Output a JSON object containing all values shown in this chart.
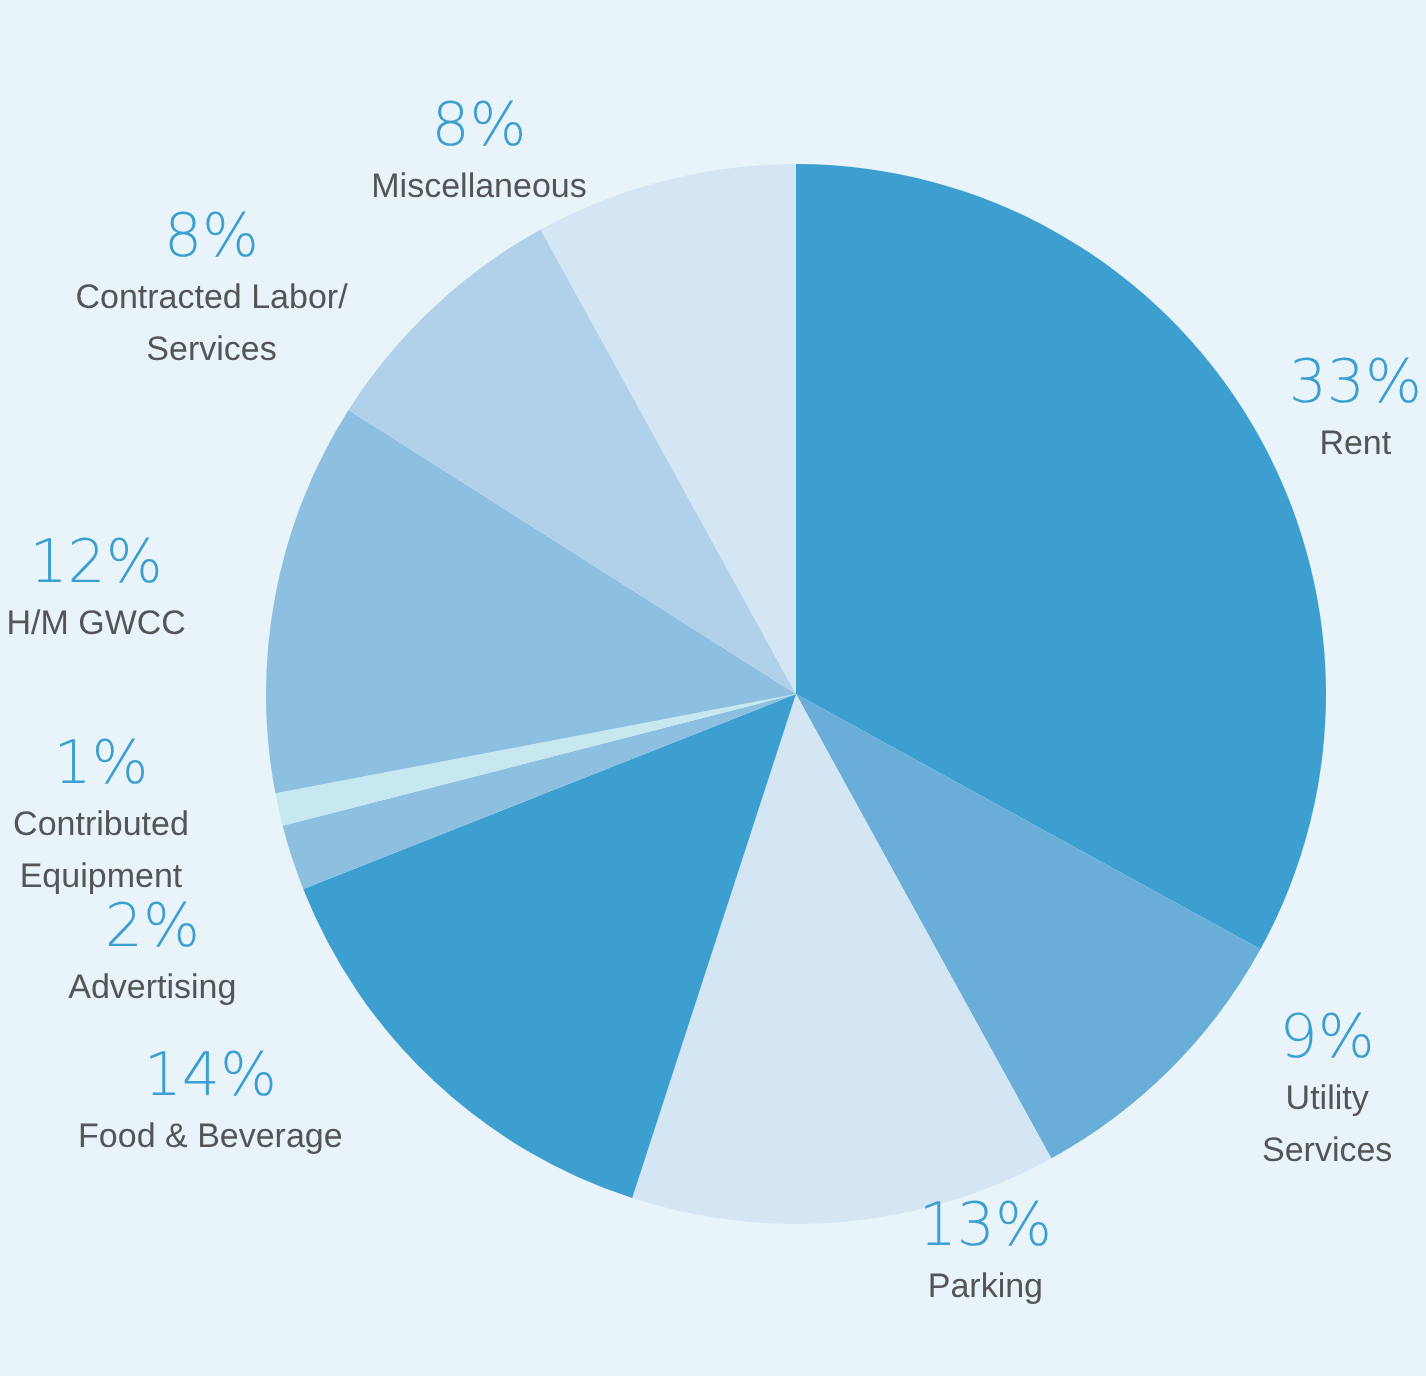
{
  "chart_data": {
    "type": "pie",
    "categories": [
      "Rent",
      "Utility\nServices",
      "Parking",
      "Food & Beverage",
      "Advertising",
      "Contributed\nEquipment",
      "H/M GWCC",
      "Contracted Labor/\nServices",
      "Miscellaneous"
    ],
    "values": [
      33,
      9,
      13,
      14,
      2,
      1,
      12,
      8,
      8
    ],
    "value_labels": [
      "33%",
      "9%",
      "13%",
      "14%",
      "2%",
      "1%",
      "12%",
      "8%",
      "8%"
    ],
    "colors": [
      "#3d9fd0",
      "#68aed8",
      "#d4e5f3",
      "#3d9fd0",
      "#8cbfe0",
      "#c6e8f1",
      "#8cbfe0",
      "#b1d1ea",
      "#d4e5f3"
    ],
    "legend": false
  }
}
